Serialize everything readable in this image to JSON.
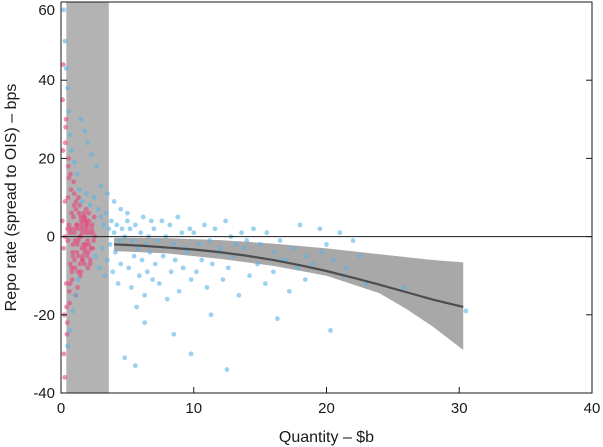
{
  "chart_data": {
    "type": "scatter",
    "title": "",
    "xlabel": "Quantity – $b",
    "ylabel": "Repo rate (spread to OIS) – bps",
    "xlim": [
      0,
      40
    ],
    "ylim": [
      -40,
      60
    ],
    "x_ticks": [
      0,
      10,
      20,
      30,
      40
    ],
    "y_ticks": [
      -40,
      -20,
      0,
      20,
      40,
      60
    ],
    "y_tick_labels": [
      "-40",
      "-20",
      "0",
      "20",
      "40",
      "60"
    ],
    "grid": false,
    "legend": "none",
    "zero_line": 0,
    "shaded_band": {
      "x": [
        0.4,
        3.6
      ],
      "color": "#b3b3b3"
    },
    "series": [
      {
        "color": "#e8457b",
        "marker": "dot",
        "points": [
          [
            0.1,
            4
          ],
          [
            0.2,
            -3
          ],
          [
            0.3,
            9
          ],
          [
            0.4,
            -12
          ],
          [
            0.5,
            2
          ],
          [
            0.6,
            15
          ],
          [
            0.7,
            -7
          ],
          [
            0.8,
            6
          ],
          [
            0.9,
            -2
          ],
          [
            1.0,
            11
          ],
          [
            1.1,
            -15
          ],
          [
            1.2,
            3
          ],
          [
            1.3,
            -5
          ],
          [
            1.4,
            8
          ],
          [
            1.5,
            -9
          ],
          [
            1.6,
            1
          ],
          [
            1.7,
            5
          ],
          [
            1.8,
            -4
          ],
          [
            1.9,
            7
          ],
          [
            2.0,
            -1
          ],
          [
            2.1,
            4
          ],
          [
            2.2,
            -6
          ],
          [
            2.3,
            2
          ],
          [
            2.4,
            -3
          ],
          [
            2.5,
            5
          ],
          [
            0.15,
            22
          ],
          [
            0.25,
            -20
          ],
          [
            0.35,
            28
          ],
          [
            0.45,
            -25
          ],
          [
            0.55,
            18
          ],
          [
            0.65,
            -17
          ],
          [
            0.75,
            12
          ],
          [
            0.85,
            -11
          ],
          [
            0.95,
            14
          ],
          [
            1.05,
            -8
          ],
          [
            1.15,
            9
          ],
          [
            1.25,
            -13
          ],
          [
            1.35,
            6
          ],
          [
            1.45,
            -10
          ],
          [
            1.55,
            3
          ],
          [
            1.65,
            -6
          ],
          [
            1.75,
            4
          ],
          [
            1.85,
            -2
          ],
          [
            1.95,
            2
          ],
          [
            2.05,
            -4
          ],
          [
            2.15,
            1
          ],
          [
            2.25,
            -3
          ],
          [
            2.35,
            3
          ],
          [
            2.45,
            -1
          ],
          [
            2.55,
            0
          ],
          [
            0.12,
            35
          ],
          [
            0.22,
            -30
          ],
          [
            0.32,
            24
          ],
          [
            0.42,
            -18
          ],
          [
            0.52,
            10
          ],
          [
            0.62,
            -14
          ],
          [
            0.72,
            16
          ],
          [
            0.82,
            -9
          ],
          [
            0.92,
            5
          ],
          [
            1.02,
            -6
          ],
          [
            1.12,
            7
          ],
          [
            1.22,
            -2
          ],
          [
            1.32,
            10
          ],
          [
            1.42,
            -7
          ],
          [
            1.52,
            4
          ],
          [
            1.62,
            -5
          ],
          [
            1.72,
            6
          ],
          [
            1.82,
            -3
          ],
          [
            1.92,
            1
          ],
          [
            2.02,
            -8
          ],
          [
            0.18,
            44
          ],
          [
            0.28,
            -36
          ],
          [
            0.38,
            30
          ],
          [
            0.48,
            -22
          ],
          [
            0.58,
            20
          ],
          [
            0.68,
            -12
          ],
          [
            0.78,
            2
          ],
          [
            0.88,
            -4
          ],
          [
            0.98,
            8
          ],
          [
            1.08,
            -1
          ],
          [
            1.18,
            3
          ],
          [
            1.28,
            -9
          ],
          [
            1.38,
            0
          ],
          [
            1.48,
            5
          ],
          [
            1.58,
            -3
          ],
          [
            1.68,
            2
          ],
          [
            1.78,
            -7
          ],
          [
            1.88,
            3
          ],
          [
            1.98,
            -5
          ],
          [
            2.08,
            6
          ],
          [
            0.3,
            0
          ],
          [
            0.5,
            -1
          ],
          [
            0.7,
            1
          ],
          [
            0.9,
            -5
          ],
          [
            1.1,
            2
          ],
          [
            1.3,
            -1
          ],
          [
            1.5,
            0
          ],
          [
            1.7,
            -2
          ],
          [
            1.9,
            4
          ],
          [
            2.1,
            -2
          ],
          [
            0.6,
            3
          ],
          [
            0.8,
            -8
          ],
          [
            1.0,
            1
          ],
          [
            1.2,
            -4
          ],
          [
            1.4,
            2
          ],
          [
            1.6,
            -6
          ],
          [
            1.8,
            5
          ],
          [
            2.0,
            3
          ],
          [
            2.2,
            -7
          ],
          [
            2.4,
            1
          ]
        ]
      },
      {
        "color": "#5ab4e5",
        "marker": "dot",
        "points": [
          [
            0.2,
            58
          ],
          [
            0.3,
            50
          ],
          [
            0.4,
            43
          ],
          [
            0.5,
            38
          ],
          [
            0.6,
            32
          ],
          [
            0.7,
            26
          ],
          [
            0.8,
            22
          ],
          [
            1.0,
            19
          ],
          [
            1.2,
            16
          ],
          [
            1.4,
            12
          ],
          [
            0.5,
            -28
          ],
          [
            0.7,
            -24
          ],
          [
            0.9,
            -19
          ],
          [
            1.1,
            -15
          ],
          [
            1.3,
            -11
          ],
          [
            1.6,
            9
          ],
          [
            1.9,
            11
          ],
          [
            2.2,
            8
          ],
          [
            2.5,
            10
          ],
          [
            2.8,
            7
          ],
          [
            3.0,
            5
          ],
          [
            3.2,
            3
          ],
          [
            3.4,
            6
          ],
          [
            3.6,
            2
          ],
          [
            3.8,
            4
          ],
          [
            4.0,
            1
          ],
          [
            4.2,
            3
          ],
          [
            4.4,
            -1
          ],
          [
            4.6,
            2
          ],
          [
            4.8,
            0
          ],
          [
            2.6,
            -5
          ],
          [
            2.9,
            -8
          ],
          [
            3.1,
            -3
          ],
          [
            3.3,
            -10
          ],
          [
            3.5,
            -6
          ],
          [
            3.7,
            -2
          ],
          [
            3.9,
            -9
          ],
          [
            4.1,
            -4
          ],
          [
            4.3,
            -12
          ],
          [
            4.5,
            -7
          ],
          [
            5.0,
            4
          ],
          [
            5.2,
            2
          ],
          [
            5.4,
            -1
          ],
          [
            5.6,
            3
          ],
          [
            5.8,
            -3
          ],
          [
            6.0,
            1
          ],
          [
            6.2,
            5
          ],
          [
            6.4,
            -2
          ],
          [
            6.6,
            0
          ],
          [
            6.8,
            4
          ],
          [
            5.1,
            -8
          ],
          [
            5.3,
            -13
          ],
          [
            5.5,
            -5
          ],
          [
            5.7,
            -18
          ],
          [
            5.9,
            -10
          ],
          [
            6.1,
            -6
          ],
          [
            6.3,
            -15
          ],
          [
            6.5,
            -9
          ],
          [
            6.7,
            -4
          ],
          [
            6.9,
            -11
          ],
          [
            7.0,
            2
          ],
          [
            7.3,
            -1
          ],
          [
            7.6,
            4
          ],
          [
            7.9,
            0
          ],
          [
            8.2,
            3
          ],
          [
            8.5,
            -2
          ],
          [
            8.8,
            5
          ],
          [
            9.1,
            1
          ],
          [
            9.4,
            -3
          ],
          [
            9.7,
            2
          ],
          [
            7.1,
            -7
          ],
          [
            7.4,
            -12
          ],
          [
            7.7,
            -5
          ],
          [
            8.0,
            -16
          ],
          [
            8.3,
            -9
          ],
          [
            8.6,
            -6
          ],
          [
            8.9,
            -14
          ],
          [
            9.2,
            -8
          ],
          [
            9.5,
            -4
          ],
          [
            9.8,
            -11
          ],
          [
            10.0,
            1
          ],
          [
            10.4,
            -2
          ],
          [
            10.8,
            3
          ],
          [
            11.2,
            -1
          ],
          [
            11.6,
            2
          ],
          [
            12.0,
            -3
          ],
          [
            12.4,
            4
          ],
          [
            12.8,
            0
          ],
          [
            13.2,
            -2
          ],
          [
            13.6,
            1
          ],
          [
            10.2,
            -9
          ],
          [
            10.6,
            -6
          ],
          [
            11.0,
            -13
          ],
          [
            11.4,
            -7
          ],
          [
            11.8,
            -4
          ],
          [
            12.2,
            -11
          ],
          [
            12.6,
            -8
          ],
          [
            13.0,
            -5
          ],
          [
            13.4,
            -15
          ],
          [
            13.8,
            -3
          ],
          [
            14.0,
            -1
          ],
          [
            14.5,
            2
          ],
          [
            15.0,
            -2
          ],
          [
            15.5,
            1
          ],
          [
            16.0,
            -4
          ],
          [
            16.5,
            -1
          ],
          [
            17.0,
            -6
          ],
          [
            17.5,
            -3
          ],
          [
            18.0,
            3
          ],
          [
            18.5,
            -5
          ],
          [
            14.2,
            -10
          ],
          [
            14.8,
            -7
          ],
          [
            15.4,
            -12
          ],
          [
            16.0,
            -9
          ],
          [
            16.6,
            -6
          ],
          [
            17.2,
            -14
          ],
          [
            17.8,
            -8
          ],
          [
            18.4,
            -11
          ],
          [
            19.0,
            -7
          ],
          [
            19.6,
            -4
          ],
          [
            8.5,
            -25
          ],
          [
            5.6,
            -33
          ],
          [
            9.8,
            -30
          ],
          [
            12.5,
            -34
          ],
          [
            4.8,
            -31
          ],
          [
            6.3,
            -22
          ],
          [
            11.3,
            -20
          ],
          [
            16.3,
            -21
          ],
          [
            20.3,
            -24
          ],
          [
            21.3,
            -10
          ],
          [
            20.0,
            -2
          ],
          [
            21.0,
            1
          ],
          [
            22.0,
            -1
          ],
          [
            19.5,
            2
          ],
          [
            20.5,
            -6
          ],
          [
            21.5,
            -8
          ],
          [
            22.5,
            -5
          ],
          [
            23.0,
            -12
          ],
          [
            25.8,
            -13
          ],
          [
            30.5,
            -19
          ],
          [
            3.0,
            13
          ],
          [
            3.5,
            11
          ],
          [
            4.0,
            9
          ],
          [
            4.5,
            7
          ],
          [
            5.0,
            6
          ],
          [
            2.0,
            24
          ],
          [
            1.8,
            27
          ],
          [
            2.3,
            21
          ],
          [
            1.5,
            30
          ],
          [
            2.7,
            18
          ]
        ]
      }
    ],
    "fit_line": {
      "color": "#4d4d4d",
      "points": [
        [
          4,
          -2
        ],
        [
          6,
          -2.3
        ],
        [
          8,
          -2.8
        ],
        [
          10,
          -3.3
        ],
        [
          12,
          -4
        ],
        [
          14,
          -4.9
        ],
        [
          16,
          -6
        ],
        [
          18,
          -7.3
        ],
        [
          20,
          -8.8
        ],
        [
          22,
          -10.5
        ],
        [
          24,
          -12.3
        ],
        [
          26,
          -14.2
        ],
        [
          28,
          -16.1
        ],
        [
          30.3,
          -18
        ]
      ]
    },
    "confidence_band": {
      "color": "#9e9e9e",
      "upper": [
        [
          4,
          -0.3
        ],
        [
          8,
          -0.4
        ],
        [
          12,
          -0.9
        ],
        [
          16,
          -1.8
        ],
        [
          20,
          -3
        ],
        [
          24,
          -4.5
        ],
        [
          28,
          -6
        ],
        [
          30.3,
          -6.6
        ]
      ],
      "lower": [
        [
          4,
          -3.7
        ],
        [
          8,
          -4.3
        ],
        [
          12,
          -5.7
        ],
        [
          16,
          -7.5
        ],
        [
          20,
          -10
        ],
        [
          24,
          -14.5
        ],
        [
          26,
          -18.5
        ],
        [
          28,
          -23
        ],
        [
          30.3,
          -29
        ]
      ]
    }
  }
}
